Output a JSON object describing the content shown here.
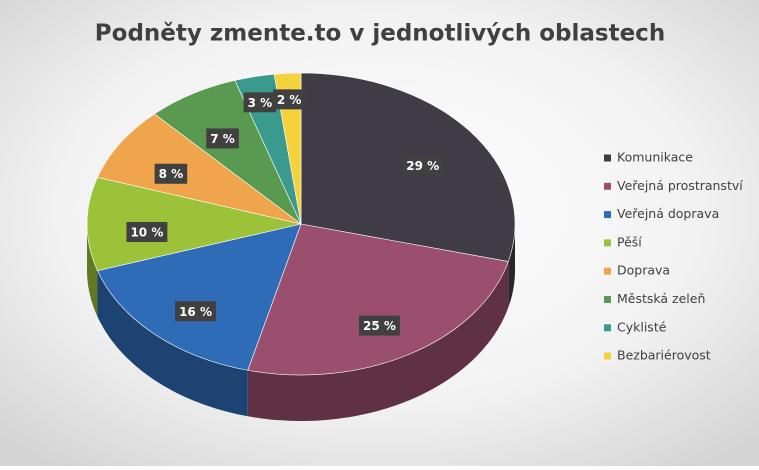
{
  "chart_data": {
    "type": "pie",
    "title": "Podněty zmente.to v jednotlivých oblastech",
    "categories": [
      "Komunikace",
      "Veřejná prostranství",
      "Veřejná doprava",
      "Pěší",
      "Doprava",
      "Městská zeleň",
      "Cyklisté",
      "Bezbariérovost"
    ],
    "values": [
      29,
      25,
      16,
      10,
      8,
      7,
      3,
      2
    ],
    "value_labels": [
      "29 %",
      "25 %",
      "16 %",
      "10 %",
      "8 %",
      "7 %",
      "3 %",
      "2 %"
    ],
    "colors": [
      "#403c45",
      "#9b4f6e",
      "#2f6cb8",
      "#9cc23a",
      "#f0a54c",
      "#5a9a50",
      "#3a9a8e",
      "#f4d23c"
    ],
    "legend": "right"
  }
}
